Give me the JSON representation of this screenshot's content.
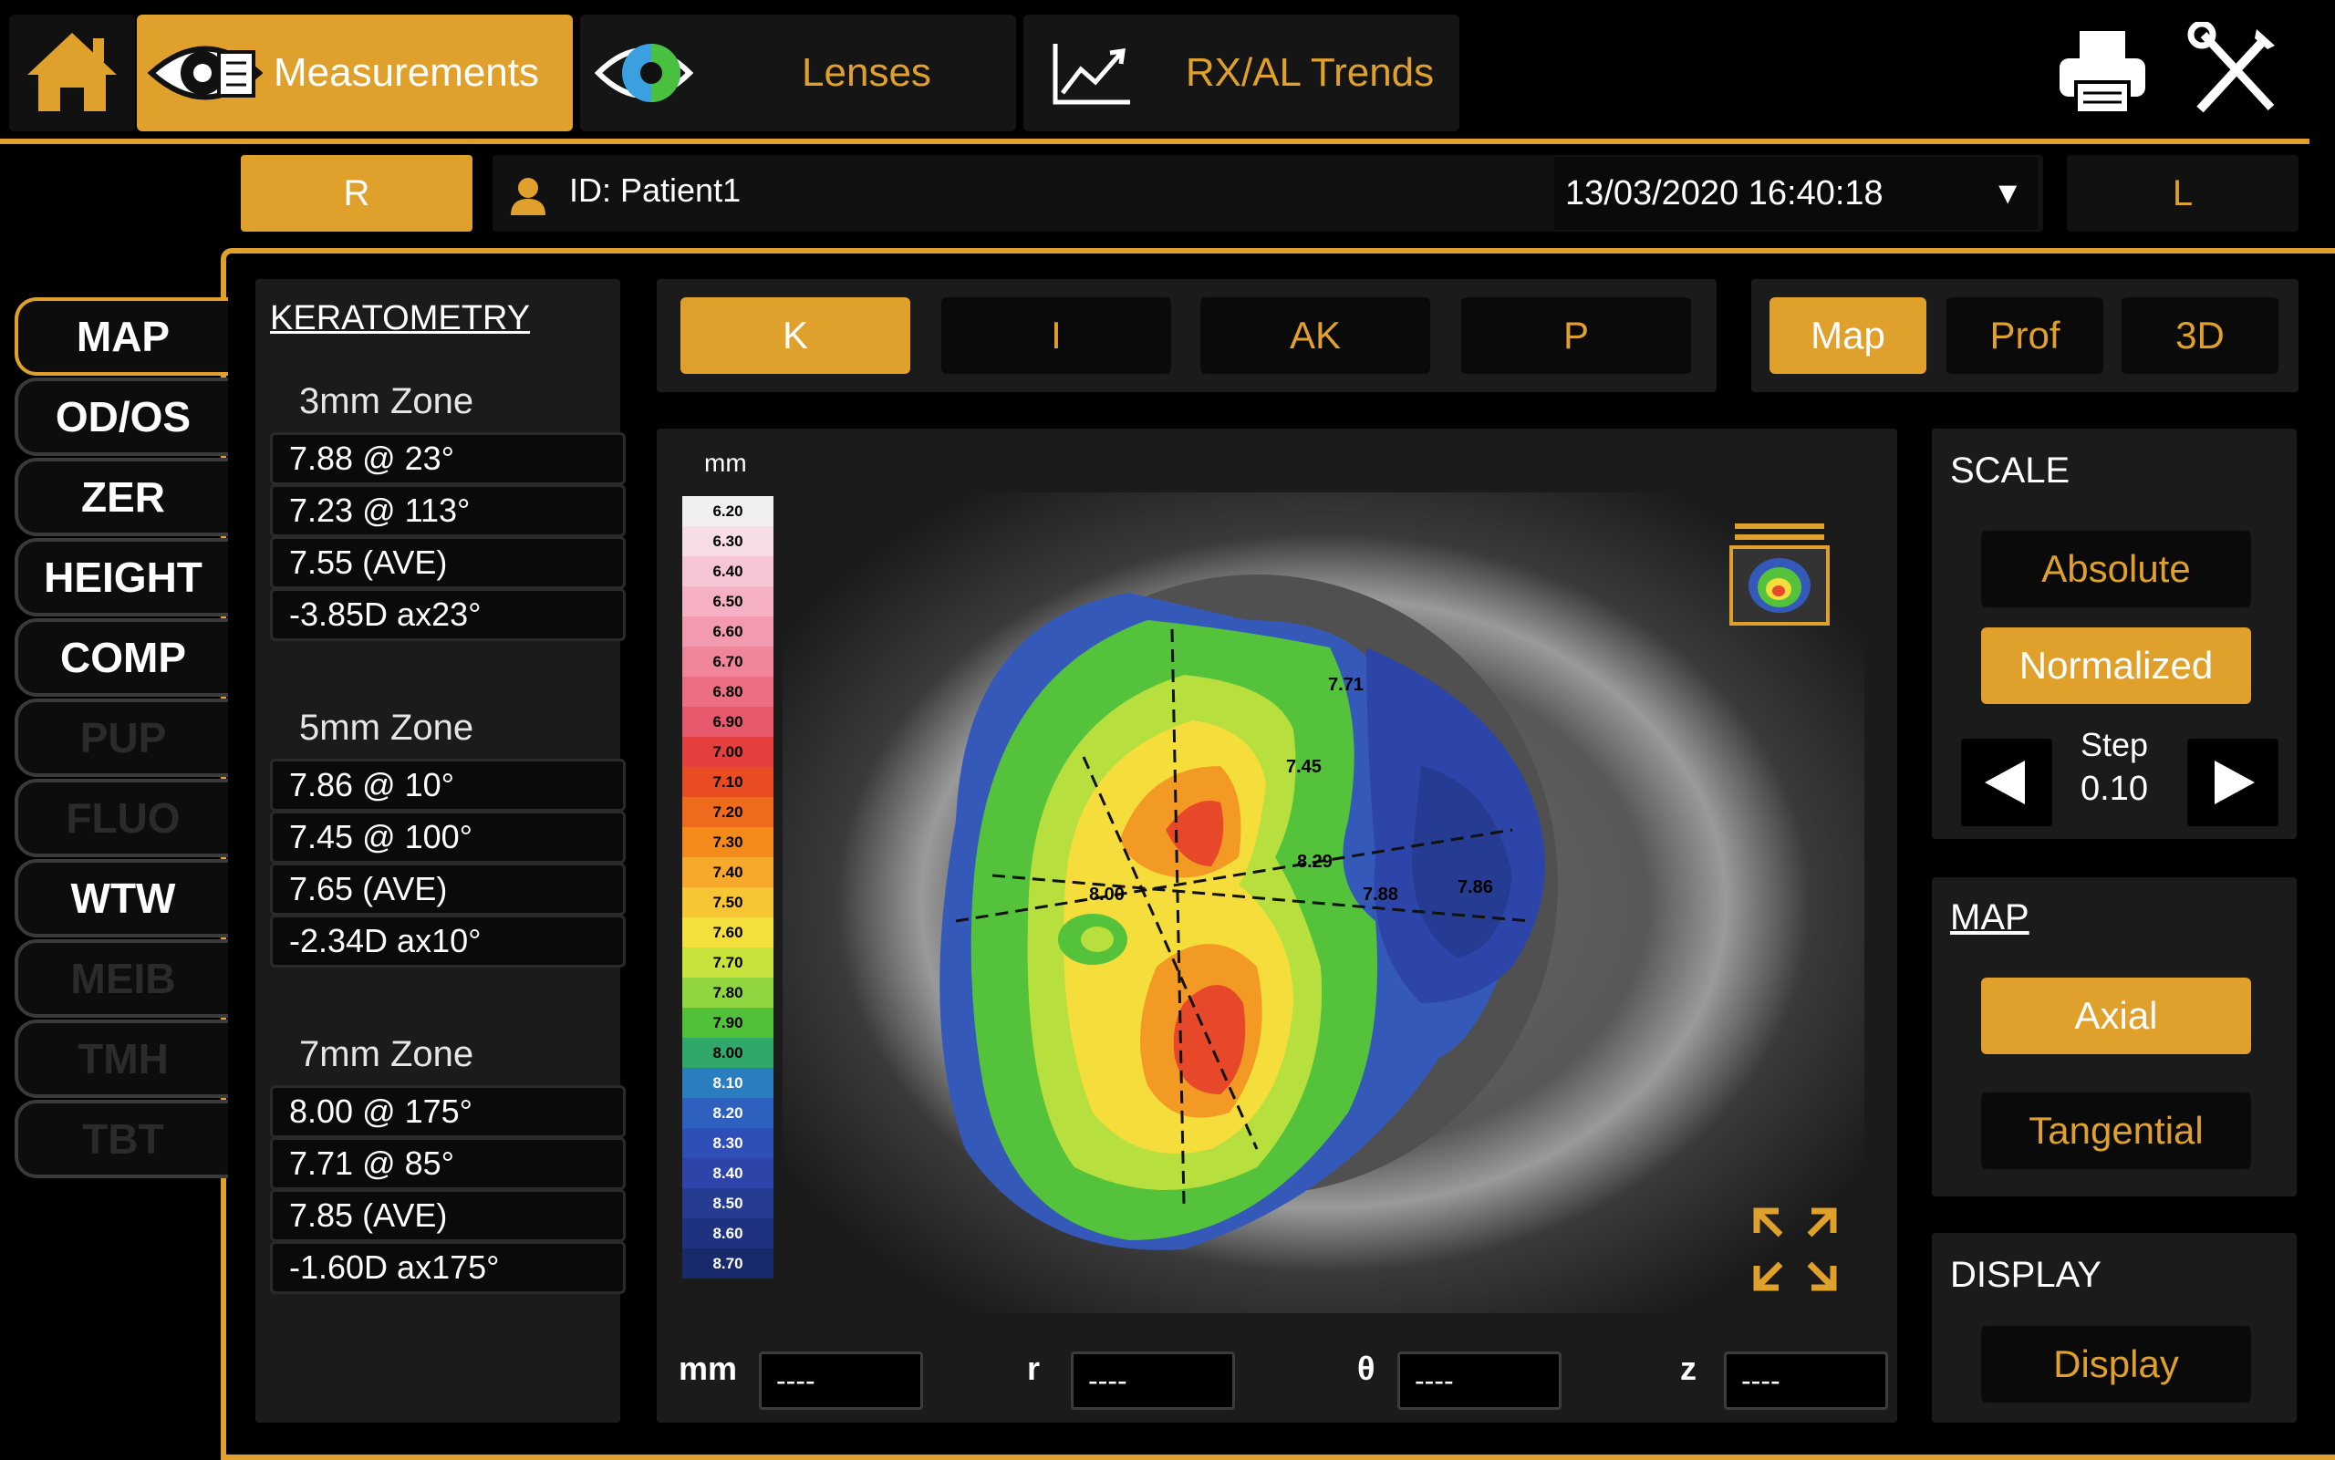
{
  "top_tabs": {
    "measurements": "Measurements",
    "lenses": "Lenses",
    "trends": "RX/AL Trends"
  },
  "patient_bar": {
    "right_eye": "R",
    "left_eye": "L",
    "patient_id": "ID: Patient1",
    "datetime": "13/03/2020 16:40:18"
  },
  "sidebar": {
    "items": [
      {
        "label": "MAP",
        "state": "active"
      },
      {
        "label": "OD/OS",
        "state": "normal"
      },
      {
        "label": "ZER",
        "state": "normal"
      },
      {
        "label": "HEIGHT",
        "state": "normal"
      },
      {
        "label": "COMP",
        "state": "normal"
      },
      {
        "label": "PUP",
        "state": "disabled"
      },
      {
        "label": "FLUO",
        "state": "disabled"
      },
      {
        "label": "WTW",
        "state": "normal"
      },
      {
        "label": "MEIB",
        "state": "disabled"
      },
      {
        "label": "TMH",
        "state": "disabled"
      },
      {
        "label": "TBT",
        "state": "disabled"
      }
    ]
  },
  "keratometry": {
    "title": "KERATOMETRY",
    "zones": [
      {
        "title": "3mm Zone",
        "values": [
          "7.88 @ 23°",
          "7.23 @ 113°",
          "7.55 (AVE)",
          "-3.85D ax23°"
        ]
      },
      {
        "title": "5mm Zone",
        "values": [
          "7.86 @ 10°",
          "7.45 @ 100°",
          "7.65 (AVE)",
          "-2.34D ax10°"
        ]
      },
      {
        "title": "7mm Zone",
        "values": [
          "8.00 @ 175°",
          "7.71 @ 85°",
          "7.85 (AVE)",
          "-1.60D ax175°"
        ]
      }
    ]
  },
  "map_tabs": {
    "k": "K",
    "i": "I",
    "ak": "AK",
    "p": "P"
  },
  "view_tabs": {
    "map": "Map",
    "prof": "Prof",
    "three_d": "3D"
  },
  "scale_bar": {
    "unit": "mm",
    "ticks": [
      "6.20",
      "6.30",
      "6.40",
      "6.50",
      "6.60",
      "6.70",
      "6.80",
      "6.90",
      "7.00",
      "7.10",
      "7.20",
      "7.30",
      "7.40",
      "7.50",
      "7.60",
      "7.70",
      "7.80",
      "7.90",
      "8.00",
      "8.10",
      "8.20",
      "8.30",
      "8.40",
      "8.50",
      "8.60",
      "8.70"
    ],
    "colors": [
      "#f2eff2",
      "#f6dde6",
      "#f7c6d6",
      "#f5b0c4",
      "#f39aae",
      "#f08499",
      "#ec6e82",
      "#e8586c",
      "#e53e3e",
      "#e94c22",
      "#ee6a1c",
      "#f38a1a",
      "#f6a92a",
      "#f8c535",
      "#f5df3c",
      "#c8e23e",
      "#8fd640",
      "#52c13a",
      "#2fa86a",
      "#2a7ec0",
      "#2e60c0",
      "#2f4fb8",
      "#2d45a8",
      "#263c92",
      "#1f3280",
      "#182a6c"
    ]
  },
  "map_labels": [
    "7.71",
    "7.45",
    "8.00",
    "8.29",
    "7.88",
    "7.86"
  ],
  "coords": {
    "mm_label": "mm",
    "mm_value": "----",
    "r_label": "r",
    "r_value": "----",
    "theta_label": "θ",
    "theta_value": "----",
    "z_label": "z",
    "z_value": "----"
  },
  "scale_panel": {
    "title": "SCALE",
    "absolute": "Absolute",
    "normalized": "Normalized",
    "step_label": "Step",
    "step_value": "0.10"
  },
  "map_panel": {
    "title": "MAP",
    "axial": "Axial",
    "tangential": "Tangential"
  },
  "display_panel": {
    "title": "DISPLAY",
    "display": "Display"
  },
  "colors": {
    "accent": "#e0a02c",
    "background": "#000000",
    "panel": "#1b1b1b"
  }
}
